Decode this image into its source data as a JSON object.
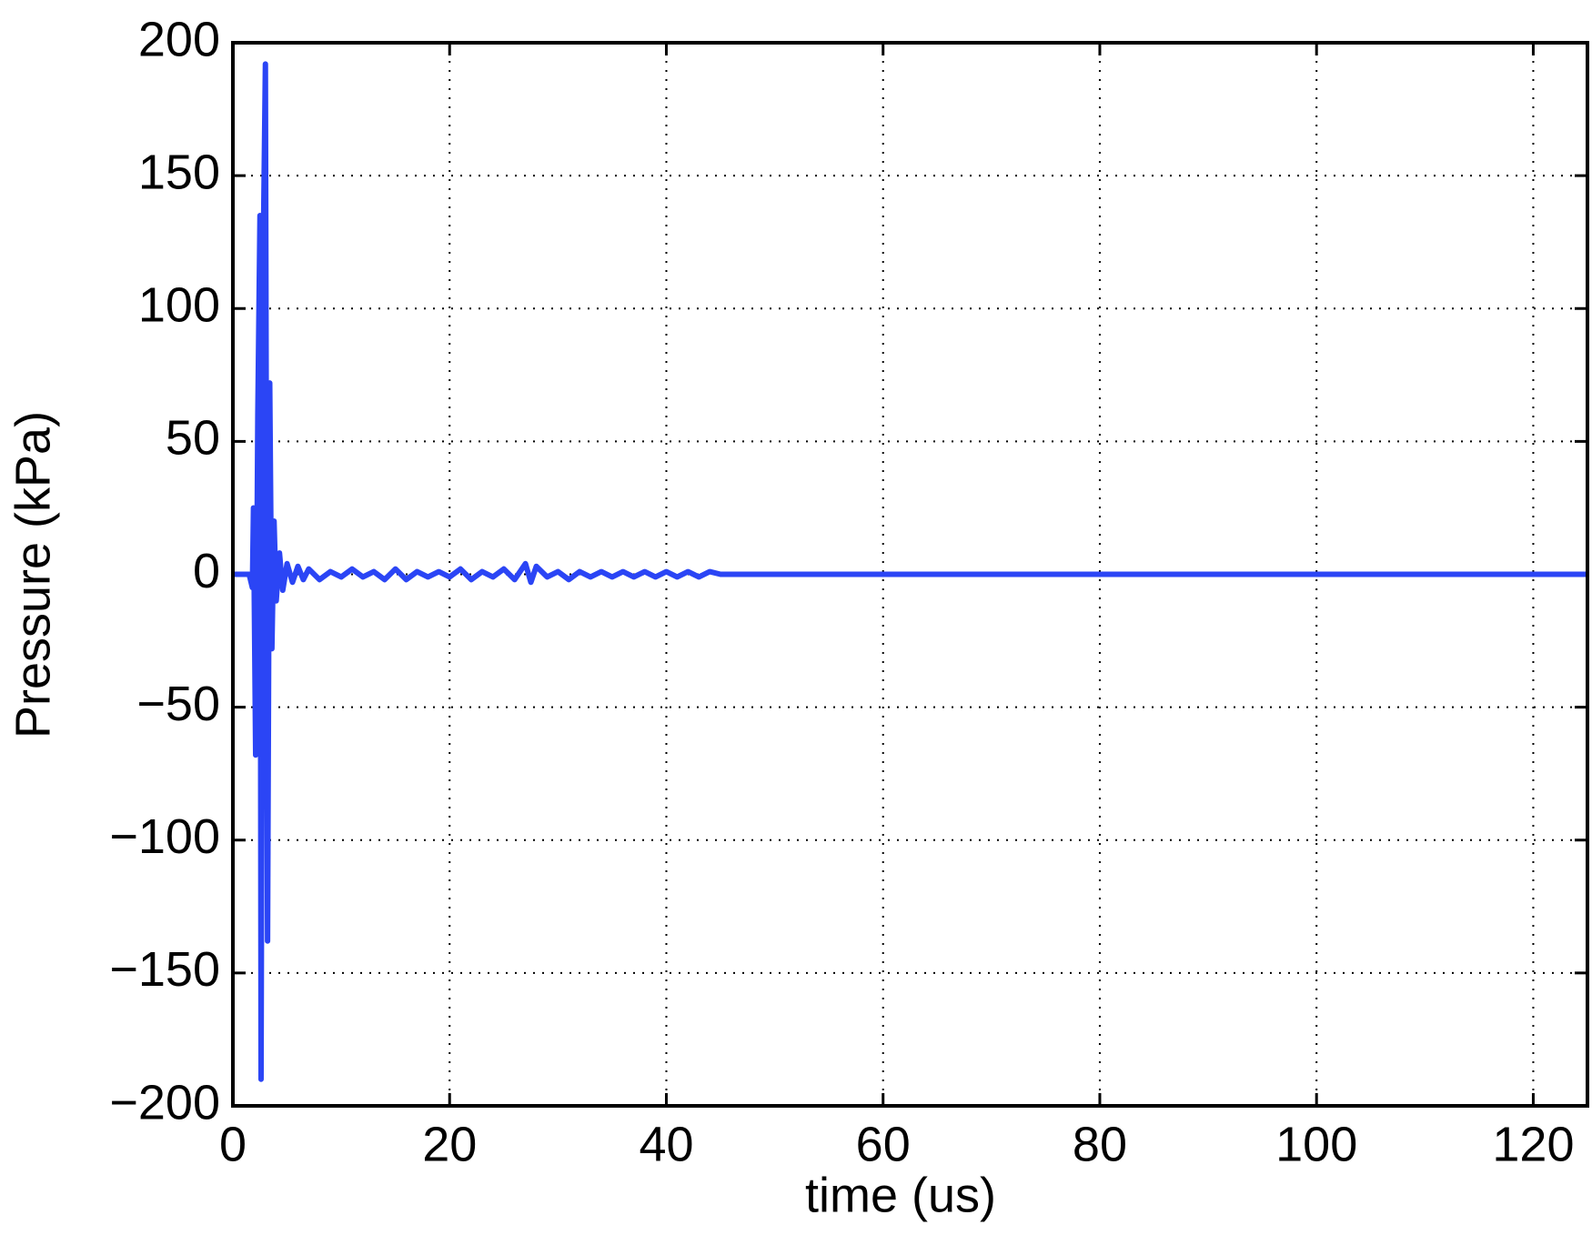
{
  "chart_data": {
    "type": "line",
    "xlabel": "time (us)",
    "ylabel": "Pressure (kPa)",
    "x": [
      0,
      1.5,
      1.8,
      1.9,
      2.1,
      2.3,
      2.5,
      2.6,
      2.8,
      3.0,
      3.2,
      3.4,
      3.6,
      3.8,
      4.0,
      4.3,
      4.6,
      5.0,
      5.5,
      6.0,
      6.5,
      7,
      8,
      9,
      10,
      11,
      12,
      13,
      14,
      15,
      16,
      17,
      18,
      19,
      20,
      21,
      22,
      23,
      24,
      25,
      26,
      27,
      27.5,
      28,
      29,
      30,
      31,
      32,
      33,
      34,
      35,
      36,
      37,
      38,
      39,
      40,
      41,
      42,
      43,
      44,
      45,
      125
    ],
    "series": [
      {
        "name": "Pressure",
        "color": "#2b45f5",
        "values": [
          0,
          0,
          -5,
          25,
          -68,
          60,
          135,
          -190,
          120,
          192,
          -138,
          72,
          -28,
          20,
          -10,
          8,
          -6,
          4,
          -3,
          3,
          -2,
          2,
          -2,
          1,
          -1,
          2,
          -1,
          1,
          -2,
          2,
          -2,
          1,
          -1,
          1,
          -1,
          2,
          -2,
          1,
          -1,
          2,
          -2,
          4,
          -3,
          3,
          -1,
          1,
          -2,
          1,
          -1,
          1,
          -1,
          1,
          -1,
          1,
          -1,
          1,
          -1,
          1,
          -1,
          1,
          0,
          0
        ]
      }
    ],
    "xlim": [
      0,
      125
    ],
    "ylim": [
      -200,
      200
    ],
    "xticks": [
      0,
      20,
      40,
      60,
      80,
      100,
      120
    ],
    "yticks": [
      {
        "value": -200,
        "label": "−200"
      },
      {
        "value": -150,
        "label": "−150"
      },
      {
        "value": -100,
        "label": "−100"
      },
      {
        "value": -50,
        "label": "−50"
      },
      0,
      50,
      100,
      150,
      200
    ],
    "grid": true
  }
}
